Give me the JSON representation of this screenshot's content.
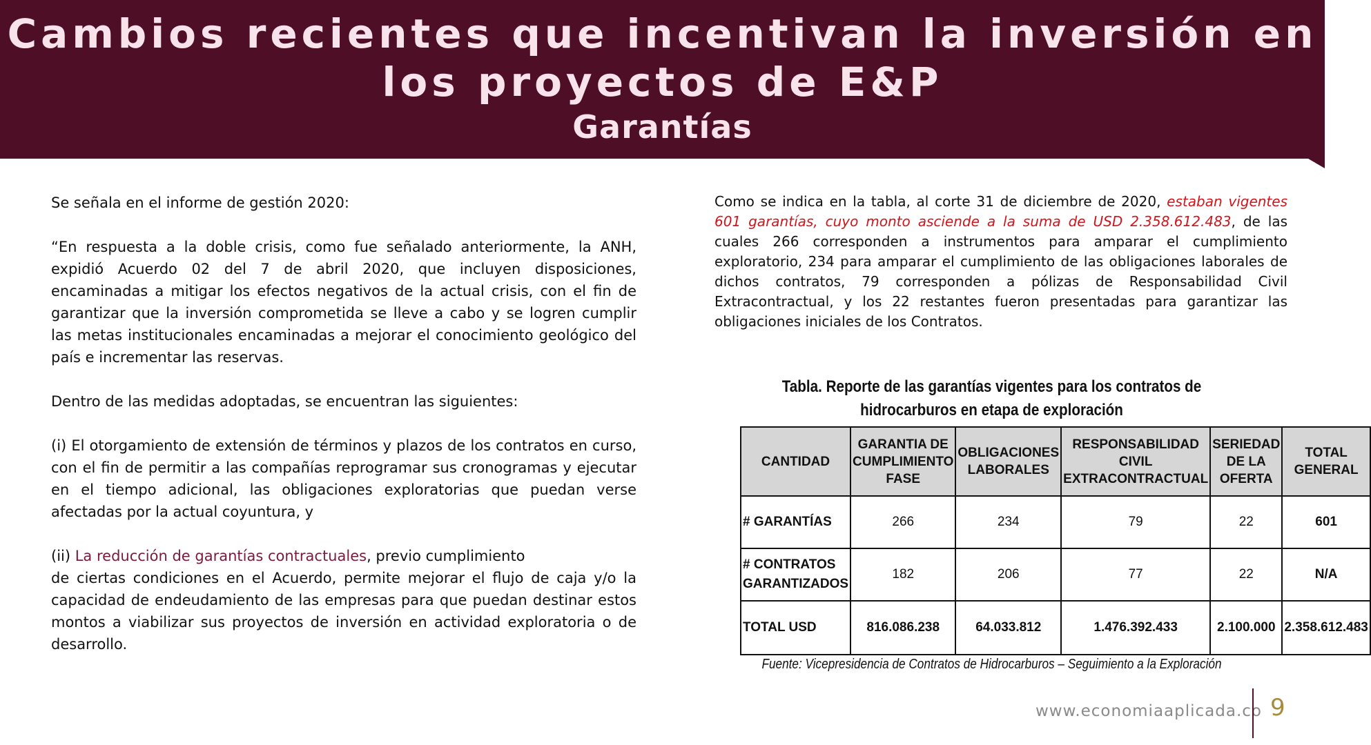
{
  "header": {
    "title": "Cambios recientes que incentivan la inversión en los proyectos de E&P",
    "subtitle": "Garantías"
  },
  "left": {
    "p1": "Se señala en el informe de gestión 2020:",
    "p2": "“En respuesta a la doble crisis, como fue señalado anteriormente, la ANH, expidió Acuerdo 02 del 7 de abril 2020, que incluyen disposiciones, encaminadas a mitigar los efectos negativos de la actual crisis, con el fin de garantizar que la inversión comprometida se lleve a cabo y se logren cumplir las metas institucionales encaminadas a mejorar el conocimiento geológico del país e incrementar las reservas.",
    "p3": "Dentro de las medidas adoptadas, se encuentran las siguientes:",
    "p4": "(i) El otorgamiento de extensión de términos y plazos de los contratos en curso, con el fin de permitir a las compañías reprogramar sus cronogramas y ejecutar en el tiempo adicional, las obligaciones exploratorias que puedan verse afectadas por la actual coyuntura, y",
    "p5_prefix": "(ii) ",
    "p5_highlight": "La reducción de garantías contractuales",
    "p5_line1_rest": ", previo cumplimiento",
    "p5_rest": "de ciertas condiciones en el Acuerdo, permite mejorar el flujo de caja y/o la capacidad de endeudamiento de las empresas para que puedan destinar estos montos a viabilizar sus proyectos de inversión en actividad exploratoria o de desarrollo."
  },
  "right": {
    "intro_pre": "Como se indica en la tabla, al corte 31 de diciembre de 2020, ",
    "intro_red": "estaban vigentes 601 garantías, cuyo monto asciende a la suma de USD 2.358.612.483",
    "intro_post": ", de las cuales 266 corresponden a instrumentos para amparar el cumplimiento exploratorio, 234 para amparar el cumplimiento de las obligaciones laborales de dichos contratos, 79 corresponden a pólizas de Responsabilidad Civil Extracontractual, y los 22 restantes fueron presentadas para garantizar las obligaciones iniciales de los Contratos."
  },
  "table": {
    "title": "Tabla. Reporte de las garantías vigentes para los contratos de hidrocarburos en etapa de exploración",
    "headers": [
      "CANTIDAD",
      "GARANTIA DE CUMPLIMIENTO FASE",
      "OBLIGACIONES LABORALES",
      "RESPONSABILIDAD CIVIL EXTRACONTRACTUAL",
      "SERIEDAD DE LA OFERTA",
      "TOTAL GENERAL"
    ],
    "rows": [
      {
        "label": "# GARANTÍAS",
        "cells": [
          "266",
          "234",
          "79",
          "22",
          "601"
        ]
      },
      {
        "label": "# CONTRATOS GARANTIZADOS",
        "cells": [
          "182",
          "206",
          "77",
          "22",
          "N/A"
        ]
      },
      {
        "label": "TOTAL USD",
        "cells": [
          "816.086.238",
          "64.033.812",
          "1.476.392.433",
          "2.100.000",
          "2.358.612.483"
        ]
      }
    ],
    "source": "Fuente: Vicepresidencia de Contratos de Hidrocarburos – Seguimiento a la Exploración"
  },
  "footer": {
    "url": "www.economiaaplicada.co",
    "page": "9"
  }
}
